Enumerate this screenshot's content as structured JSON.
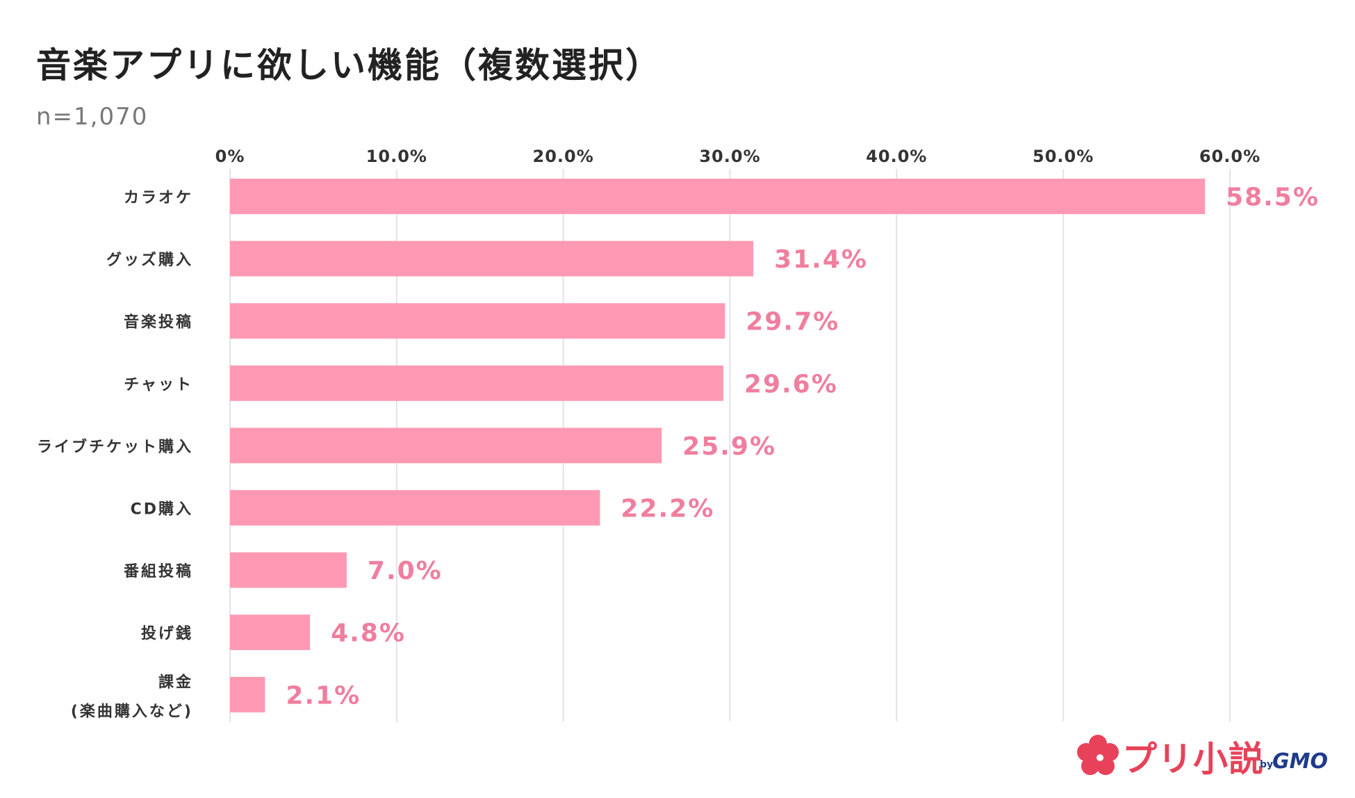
{
  "header": {
    "title": "音楽アプリに欲しい機能（複数選択）",
    "sample": "n=1,070"
  },
  "colors": {
    "bar": "#ff99b3",
    "value_label": "#f07e9e",
    "grid": "#e3e3e3",
    "text": "#333333"
  },
  "chart_data": {
    "type": "bar",
    "orientation": "horizontal",
    "title": "音楽アプリに欲しい機能（複数選択）",
    "xlabel": "",
    "ylabel": "",
    "xlim": [
      0,
      60
    ],
    "ticks": [
      0,
      10,
      20,
      30,
      40,
      50,
      60
    ],
    "tick_labels": [
      "0%",
      "10.0%",
      "20.0%",
      "30.0%",
      "40.0%",
      "50.0%",
      "60.0%"
    ],
    "grid": true,
    "categories": [
      [
        "カラオケ"
      ],
      [
        "グッズ購入"
      ],
      [
        "音楽投稿"
      ],
      [
        "チャット"
      ],
      [
        "ライブチケット購入"
      ],
      [
        "CD購入"
      ],
      [
        "番組投稿"
      ],
      [
        "投げ銭"
      ],
      [
        "課金",
        "(楽曲購入など)"
      ]
    ],
    "values": [
      58.5,
      31.4,
      29.7,
      29.6,
      25.9,
      22.2,
      7.0,
      4.8,
      2.1
    ],
    "value_labels": [
      "58.5%",
      "31.4%",
      "29.7%",
      "29.6%",
      "25.9%",
      "22.2%",
      "7.0%",
      "4.8%",
      "2.1%"
    ]
  },
  "logo": {
    "name": "プリ小説",
    "by": "by",
    "brand": "GMO"
  }
}
